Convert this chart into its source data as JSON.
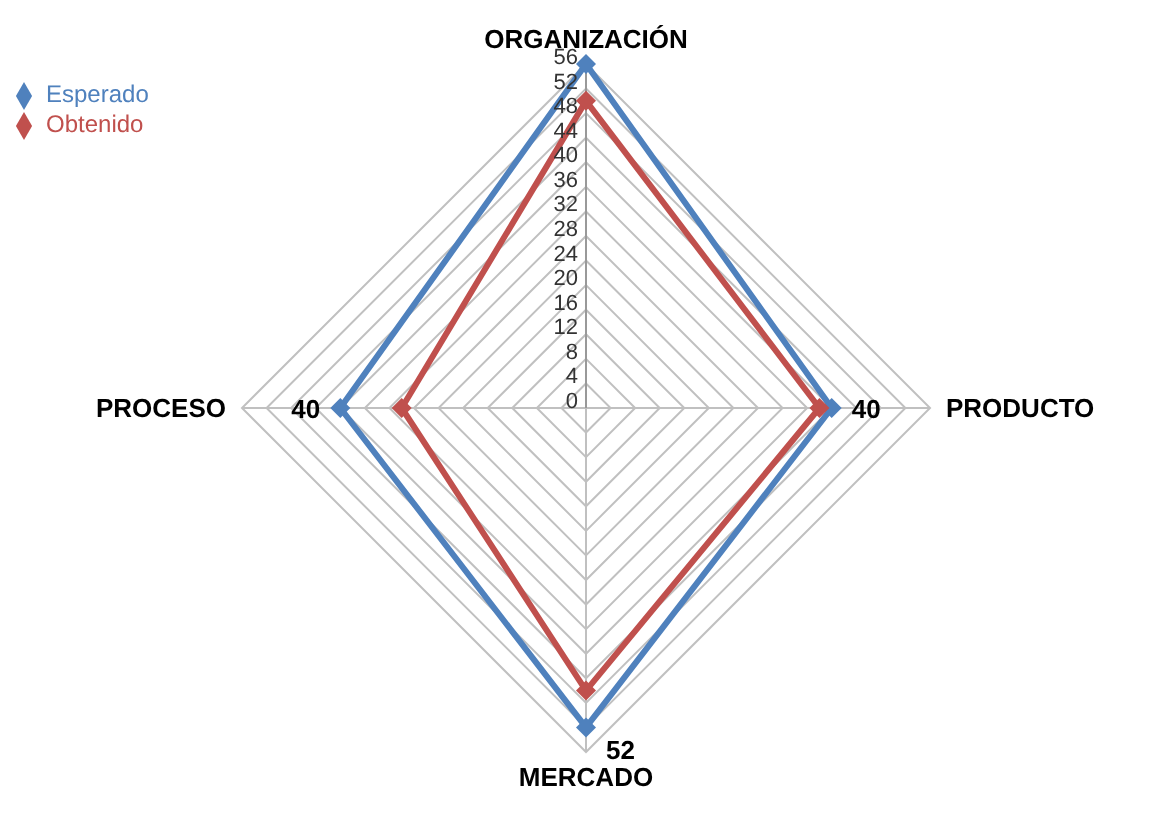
{
  "chart_data": {
    "type": "radar",
    "categories": [
      "ORGANIZACIÓN",
      "PRODUCTO",
      "MERCADO",
      "PROCESO"
    ],
    "series": [
      {
        "name": "Esperado",
        "color": "#4f81bd",
        "values": [
          56,
          40,
          52,
          40
        ],
        "value_labels": [
          null,
          "40",
          "52",
          "40"
        ]
      },
      {
        "name": "Obtenido",
        "color": "#c0504d",
        "values": [
          50,
          38,
          46,
          30
        ]
      }
    ],
    "ylim": [
      0,
      56
    ],
    "yticks": [
      0,
      4,
      8,
      12,
      16,
      20,
      24,
      28,
      32,
      36,
      40,
      44,
      48,
      52,
      56
    ],
    "grid": true,
    "legend": "top left",
    "marker": "diamond"
  }
}
